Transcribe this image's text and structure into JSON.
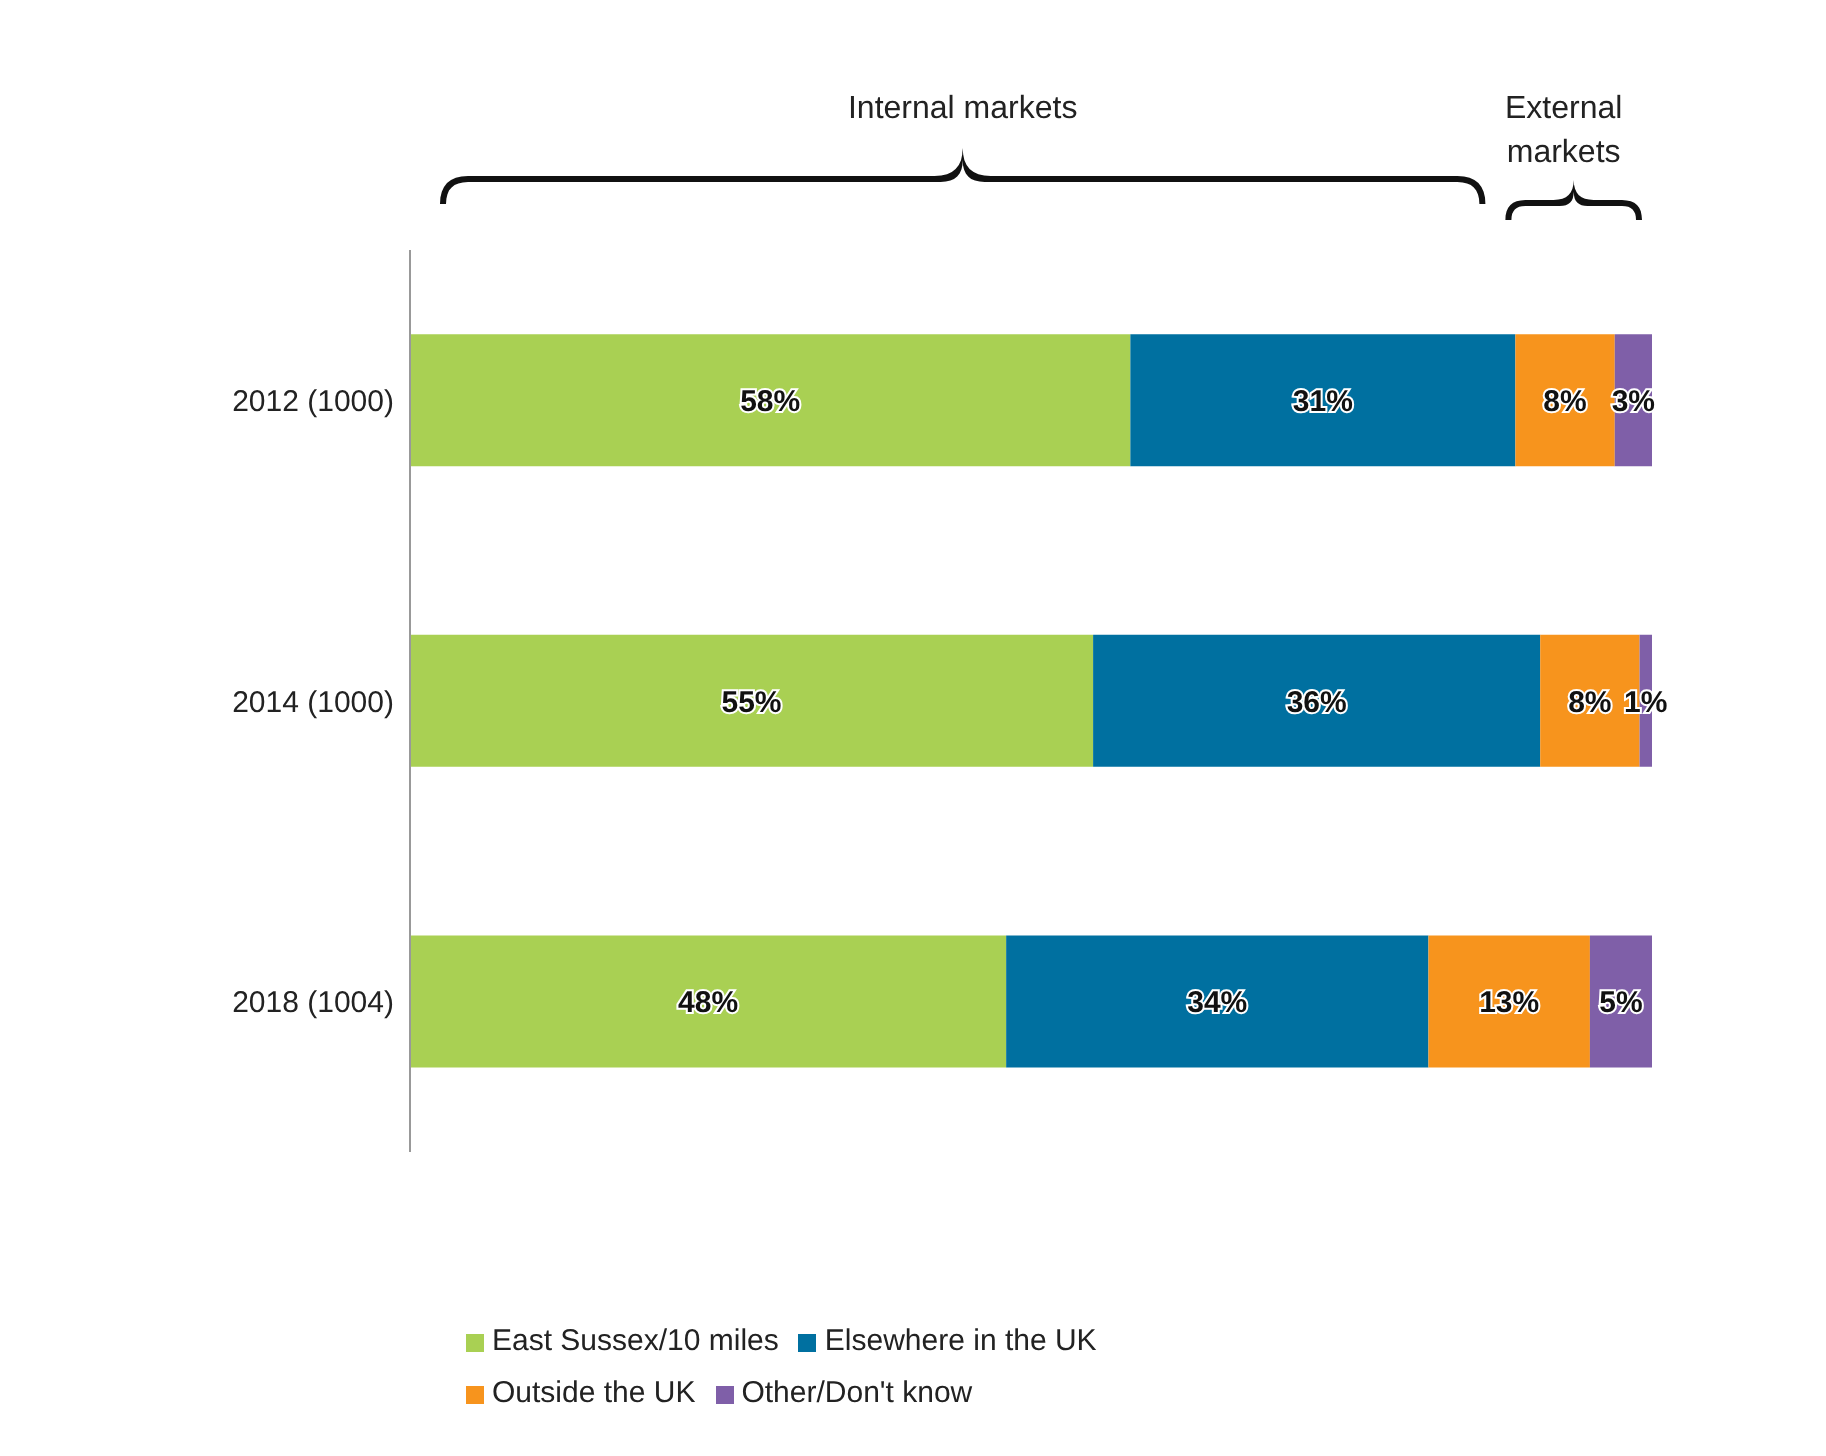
{
  "chart_data": {
    "type": "bar",
    "orientation": "horizontal",
    "stacked": true,
    "legend": "bottom",
    "categories": [
      "2012 (1000)",
      "2014 (1000)",
      "2018 (1004)"
    ],
    "series": [
      {
        "name": "East Sussex/10 miles",
        "color": "#a9d053",
        "values": [
          58,
          55,
          48
        ],
        "value_labels": [
          "58%",
          "55%",
          "48%"
        ]
      },
      {
        "name": "Elsewhere in the UK",
        "color": "#0070a0",
        "values": [
          31,
          36,
          34
        ],
        "value_labels": [
          "31%",
          "36%",
          "34%"
        ]
      },
      {
        "name": "Outside the UK",
        "color": "#f7941d",
        "values": [
          8,
          8,
          13
        ],
        "value_labels": [
          "8%",
          "8%",
          "13%"
        ]
      },
      {
        "name": "Other/Don't know",
        "color": "#7f5fa8",
        "values": [
          3,
          1,
          5
        ],
        "value_labels": [
          "3%",
          "1%",
          "5%"
        ]
      }
    ],
    "annotations": [
      "Internal markets",
      "External markets"
    ]
  }
}
